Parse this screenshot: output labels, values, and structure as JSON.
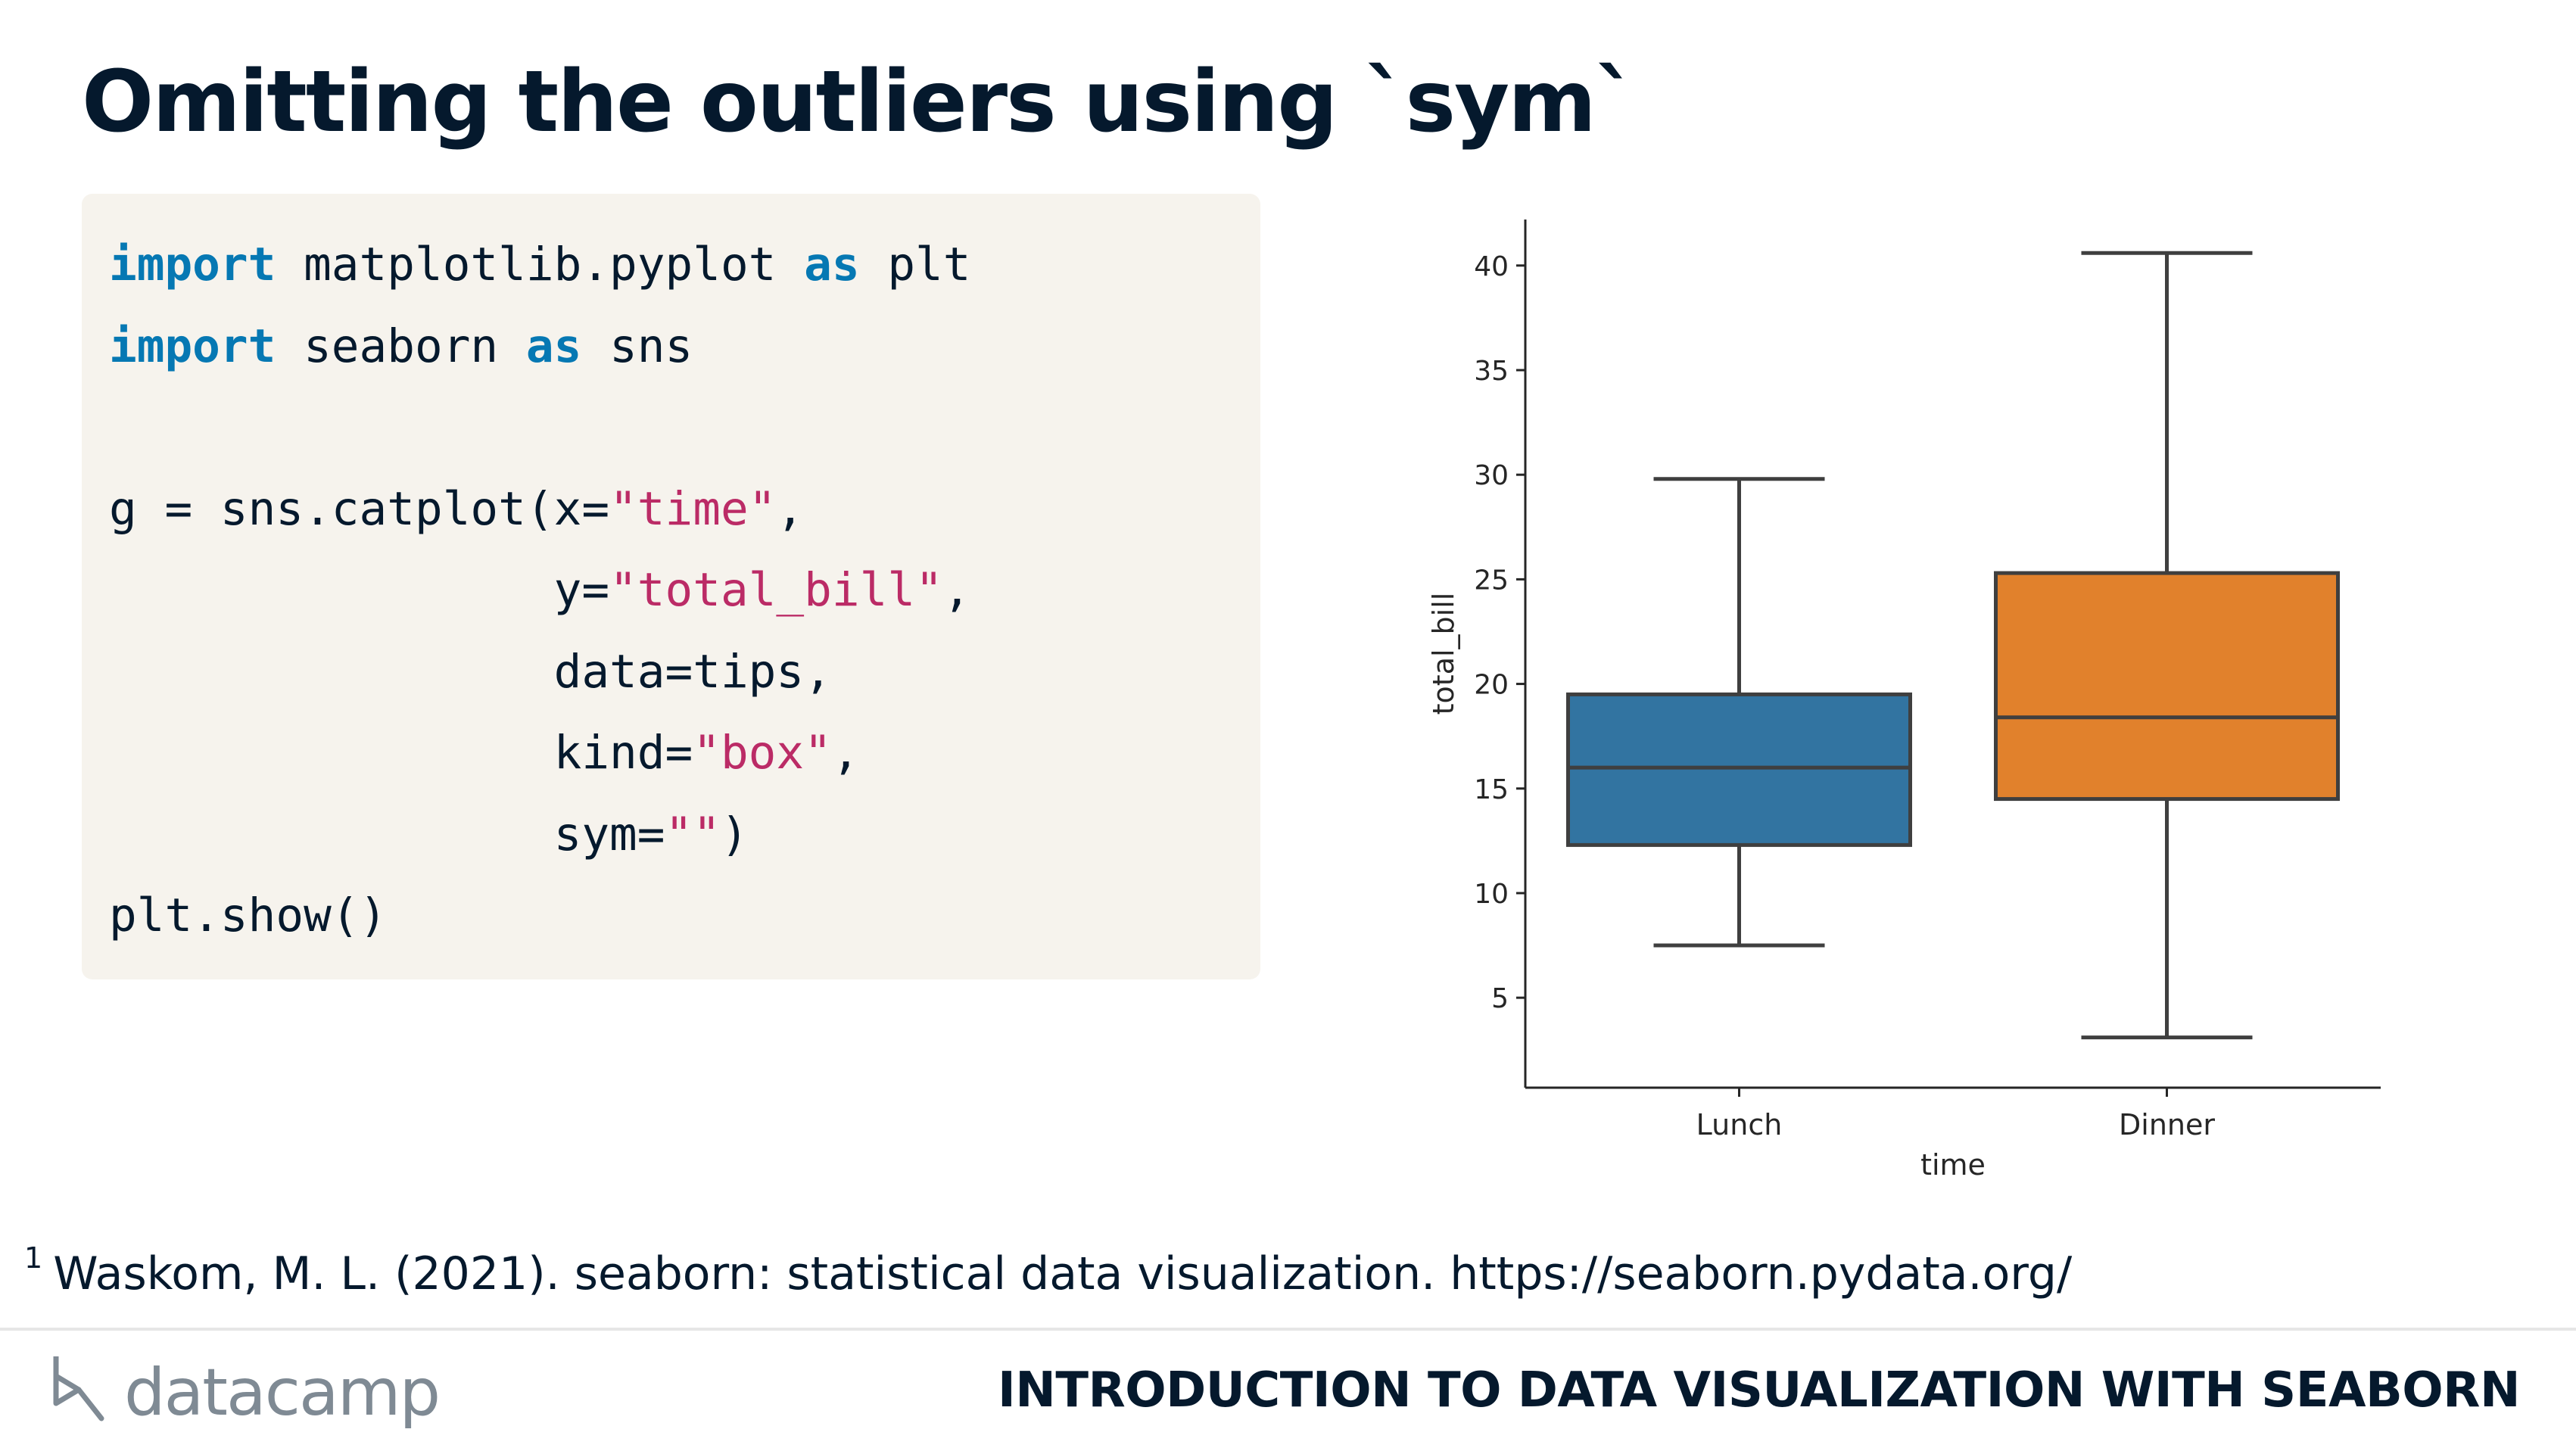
{
  "slide": {
    "title": "Omitting the outliers using `sym`",
    "footnote_marker": "1",
    "footnote_text": "Waskom, M. L. (2021). seaborn: statistical data visualization. https://seaborn.pydata.org/"
  },
  "code": {
    "lines": [
      [
        {
          "t": "import",
          "c": "kw"
        },
        {
          "t": " matplotlib.pyplot ",
          "c": ""
        },
        {
          "t": "as",
          "c": "kw"
        },
        {
          "t": " plt",
          "c": ""
        }
      ],
      [
        {
          "t": "import",
          "c": "kw"
        },
        {
          "t": " seaborn ",
          "c": ""
        },
        {
          "t": "as",
          "c": "kw"
        },
        {
          "t": " sns",
          "c": ""
        }
      ],
      [],
      [
        {
          "t": "g = sns.catplot(x=",
          "c": ""
        },
        {
          "t": "\"time\"",
          "c": "str"
        },
        {
          "t": ",",
          "c": ""
        }
      ],
      [
        {
          "t": "                y=",
          "c": ""
        },
        {
          "t": "\"total_bill\"",
          "c": "str"
        },
        {
          "t": ",",
          "c": ""
        }
      ],
      [
        {
          "t": "                data=tips,",
          "c": ""
        }
      ],
      [
        {
          "t": "                kind=",
          "c": ""
        },
        {
          "t": "\"box\"",
          "c": "str"
        },
        {
          "t": ",",
          "c": ""
        }
      ],
      [
        {
          "t": "                sym=",
          "c": ""
        },
        {
          "t": "\"\"",
          "c": "str"
        },
        {
          "t": ")",
          "c": ""
        }
      ],
      [
        {
          "t": "plt.show()",
          "c": ""
        }
      ]
    ]
  },
  "chart_data": {
    "type": "box",
    "categories": [
      "Lunch",
      "Dinner"
    ],
    "xlabel": "time",
    "ylabel": "total_bill",
    "ylim": [
      0.7,
      42.2
    ],
    "yticks": [
      5,
      10,
      15,
      20,
      25,
      30,
      35,
      40
    ],
    "boxes": [
      {
        "category": "Lunch",
        "whisker_low": 7.5,
        "q1": 12.3,
        "median": 16.0,
        "q3": 19.5,
        "whisker_high": 29.8,
        "color": "#3274a1"
      },
      {
        "category": "Dinner",
        "whisker_low": 3.1,
        "q1": 14.5,
        "median": 18.4,
        "q3": 25.3,
        "whisker_high": 40.6,
        "color": "#e1812c"
      }
    ],
    "outliers_shown": false
  },
  "brand": {
    "logo_text": "datacamp",
    "course_title": "INTRODUCTION TO DATA VISUALIZATION WITH SEABORN"
  }
}
